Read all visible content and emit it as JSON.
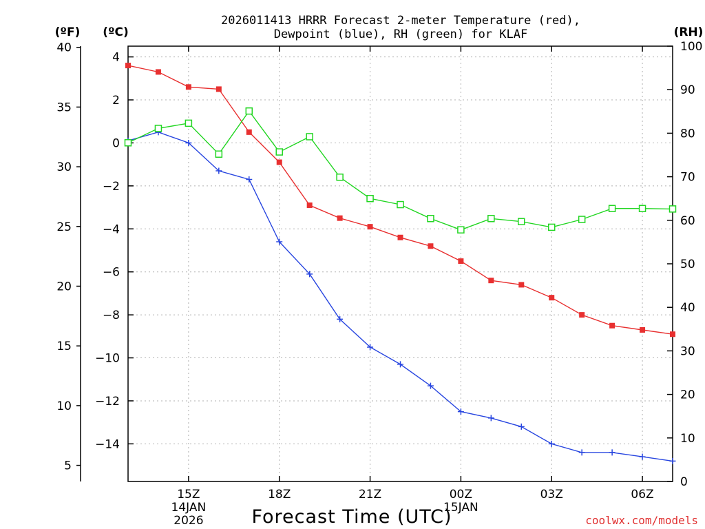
{
  "chart_data": {
    "type": "line",
    "title_line1": "2026011413 HRRR Forecast 2-meter Temperature (red),",
    "title_line2": "Dewpoint (blue), RH (green) for KLAF",
    "xlabel": "Forecast Time (UTC)",
    "credit": "coolwx.com/models",
    "units": {
      "fahrenheit": "(ºF)",
      "celsius": "(ºC)",
      "rh": "(RH)"
    },
    "x_hours": [
      13,
      14,
      15,
      16,
      17,
      18,
      19,
      20,
      21,
      22,
      23,
      24,
      25,
      26,
      27,
      28,
      29,
      30,
      31
    ],
    "x_ticks": [
      {
        "hour": 15,
        "label": "15Z"
      },
      {
        "hour": 18,
        "label": "18Z"
      },
      {
        "hour": 21,
        "label": "21Z"
      },
      {
        "hour": 24,
        "label": "00Z"
      },
      {
        "hour": 27,
        "label": "03Z"
      },
      {
        "hour": 30,
        "label": "06Z"
      }
    ],
    "date_labels": [
      {
        "hour": 15,
        "line1": "14JAN",
        "line2": "2026"
      },
      {
        "hour": 24,
        "line1": "15JAN",
        "line2": ""
      }
    ],
    "celsius_axis": {
      "ylim": [
        -15.75,
        4.5
      ],
      "ticks": [
        4,
        2,
        0,
        -2,
        -4,
        -6,
        -8,
        -10,
        -12,
        -14
      ]
    },
    "fahrenheit_axis": {
      "ylim": [
        3.65,
        40.1
      ],
      "ticks": [
        40,
        35,
        30,
        25,
        20,
        15,
        10,
        5
      ]
    },
    "rh_axis": {
      "ylim": [
        0,
        100
      ],
      "ticks": [
        100,
        90,
        80,
        70,
        60,
        50,
        40,
        30,
        20,
        10,
        0
      ]
    },
    "series": [
      {
        "name": "Temperature",
        "axis": "celsius",
        "color": "#e83030",
        "marker": "filled-square",
        "values": [
          3.6,
          3.3,
          2.6,
          2.5,
          0.5,
          -0.9,
          -2.9,
          -3.5,
          -3.9,
          -4.4,
          -4.8,
          -5.5,
          -6.4,
          -6.6,
          -7.2,
          -8.0,
          -8.5,
          -8.7,
          -8.9
        ]
      },
      {
        "name": "Dewpoint",
        "axis": "celsius",
        "color": "#2846e0",
        "marker": "plus",
        "values": [
          0.1,
          0.5,
          0.0,
          -1.3,
          -1.7,
          -4.6,
          -6.1,
          -8.2,
          -9.5,
          -10.3,
          -11.3,
          -12.5,
          -12.8,
          -13.2,
          -14.0,
          -14.4,
          -14.4,
          -14.6,
          -14.8
        ]
      },
      {
        "name": "RH",
        "axis": "rh",
        "color": "#22d622",
        "marker": "open-square",
        "values": [
          77.8,
          81.1,
          82.3,
          75.2,
          85.1,
          75.7,
          79.2,
          69.9,
          65.0,
          63.6,
          60.4,
          57.8,
          60.4,
          59.7,
          58.4,
          60.2,
          62.7,
          62.7,
          62.6
        ]
      }
    ]
  }
}
